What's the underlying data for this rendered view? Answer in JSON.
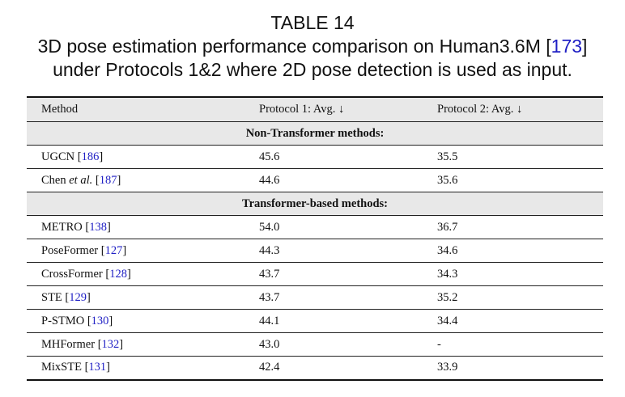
{
  "caption": {
    "title": "TABLE 14",
    "line1_pre": "3D pose estimation performance comparison on Human3.6M [",
    "line1_ref": "173",
    "line1_post": "]",
    "line2": "under Protocols 1&2 where 2D pose detection is used as input."
  },
  "table": {
    "headers": [
      "Method",
      "Protocol 1: Avg. ↓",
      "Protocol 2: Avg. ↓"
    ],
    "groups": [
      {
        "title": "Non-Transformer methods:",
        "rows": [
          {
            "name": "UGCN",
            "name_italic": "",
            "name_suffix": "",
            "ref": "186",
            "p1": "45.6",
            "p2": "35.5"
          },
          {
            "name": "Chen ",
            "name_italic": "et al.",
            "name_suffix": " ",
            "ref": "187",
            "p1": "44.6",
            "p2": "35.6"
          }
        ]
      },
      {
        "title": "Transformer-based methods:",
        "rows": [
          {
            "name": "METRO",
            "ref": "138",
            "p1": "54.0",
            "p2": "36.7"
          },
          {
            "name": "PoseFormer",
            "ref": "127",
            "p1": "44.3",
            "p2": "34.6"
          },
          {
            "name": "CrossFormer",
            "ref": "128",
            "p1": "43.7",
            "p2": "34.3"
          },
          {
            "name": "STE",
            "ref": "129",
            "p1": "43.7",
            "p2": "35.2"
          },
          {
            "name": "P-STMO",
            "ref": "130",
            "p1": "44.1",
            "p2": "34.4"
          },
          {
            "name": "MHFormer",
            "ref": "132",
            "p1": "43.0",
            "p2": "-"
          },
          {
            "name": "MixSTE",
            "ref": "131",
            "p1": "42.4",
            "p2": "33.9"
          }
        ]
      }
    ]
  }
}
